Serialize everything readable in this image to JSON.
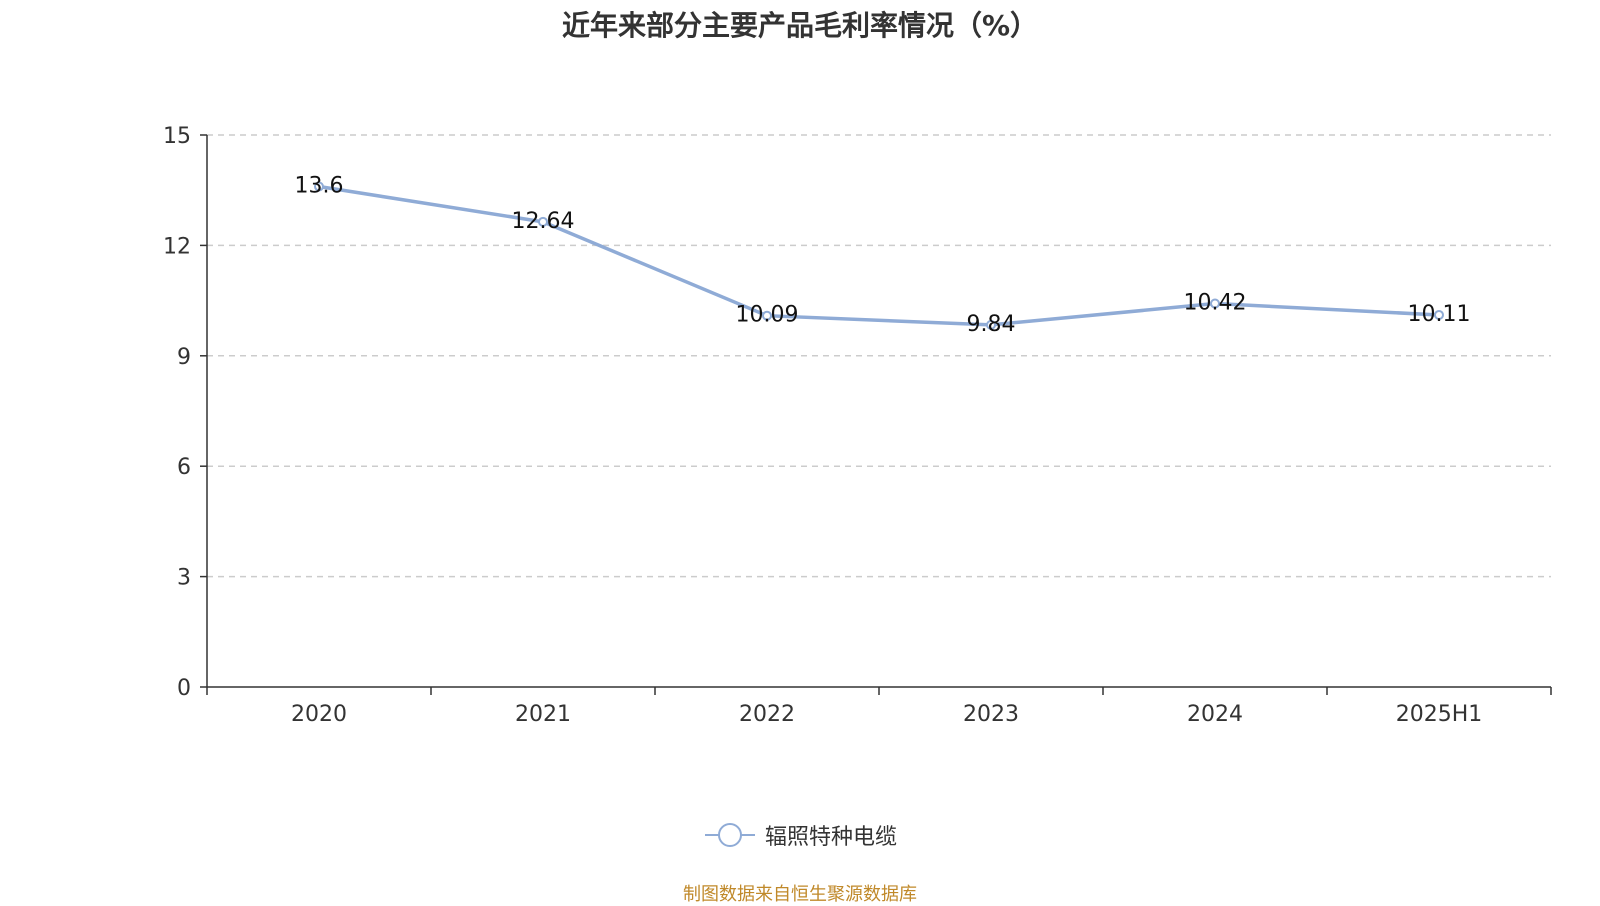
{
  "chart_data": {
    "type": "line",
    "title": "近年来部分主要产品毛利率情况（%）",
    "categories": [
      "2020",
      "2021",
      "2022",
      "2023",
      "2024",
      "2025H1"
    ],
    "series": [
      {
        "name": "辐照特种电缆",
        "values": [
          13.6,
          12.64,
          10.09,
          9.84,
          10.42,
          10.11
        ],
        "color": "#8fabd6"
      }
    ],
    "data_labels": [
      "13.6",
      "12.64",
      "10.09",
      "9.84",
      "10.42",
      "10.11"
    ],
    "ylim": [
      0,
      15
    ],
    "yticks": [
      0,
      3,
      6,
      9,
      12,
      15
    ],
    "grid": true,
    "legend_position": "bottom-center",
    "xlabel": "",
    "ylabel": ""
  },
  "footer": {
    "source": "制图数据来自恒生聚源数据库"
  }
}
